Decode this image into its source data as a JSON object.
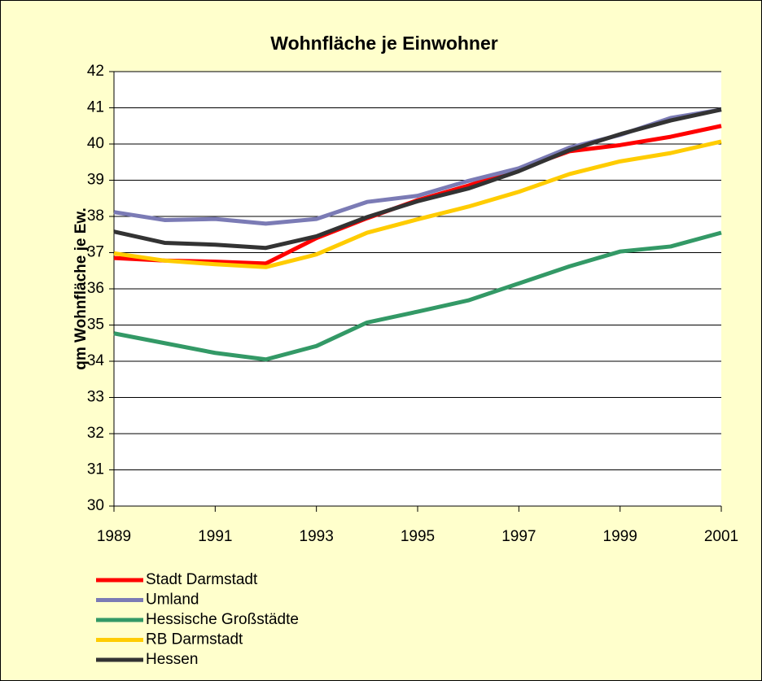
{
  "chart_data": {
    "type": "line",
    "title": "Wohnfläche je Einwohner",
    "y_label": "qm Wohnfläche je Ew.",
    "x": [
      1989,
      1990,
      1991,
      1992,
      1993,
      1994,
      1995,
      1996,
      1997,
      1998,
      1999,
      2000,
      2001
    ],
    "xlim": [
      1989,
      2001
    ],
    "xticks": [
      1989,
      1991,
      1993,
      1995,
      1997,
      1999,
      2001
    ],
    "ylim": [
      30,
      42
    ],
    "yticks": [
      30,
      31,
      32,
      33,
      34,
      35,
      36,
      37,
      38,
      39,
      40,
      41,
      42
    ],
    "grid": true,
    "series": [
      {
        "name": "Stadt Darmstadt",
        "color": "#ff0000",
        "values": [
          36.85,
          36.78,
          36.75,
          36.7,
          37.4,
          37.95,
          38.45,
          38.85,
          39.3,
          39.8,
          39.97,
          40.2,
          40.5
        ]
      },
      {
        "name": "Umland",
        "color": "#7b7bb5",
        "values": [
          38.12,
          37.9,
          37.93,
          37.8,
          37.93,
          38.4,
          38.57,
          38.98,
          39.33,
          39.9,
          40.25,
          40.72,
          40.95
        ]
      },
      {
        "name": "Hessische Großstädte",
        "color": "#339966",
        "values": [
          34.77,
          34.5,
          34.23,
          34.05,
          34.42,
          35.07,
          35.37,
          35.68,
          36.15,
          36.62,
          37.03,
          37.17,
          37.55
        ]
      },
      {
        "name": "RB Darmstadt",
        "color": "#ffcc00",
        "values": [
          36.98,
          36.78,
          36.68,
          36.6,
          36.95,
          37.55,
          37.92,
          38.27,
          38.68,
          39.17,
          39.52,
          39.75,
          40.07
        ]
      },
      {
        "name": "Hessen",
        "color": "#333333",
        "values": [
          37.58,
          37.27,
          37.22,
          37.13,
          37.45,
          37.98,
          38.42,
          38.77,
          39.25,
          39.83,
          40.27,
          40.65,
          40.95
        ]
      }
    ]
  }
}
